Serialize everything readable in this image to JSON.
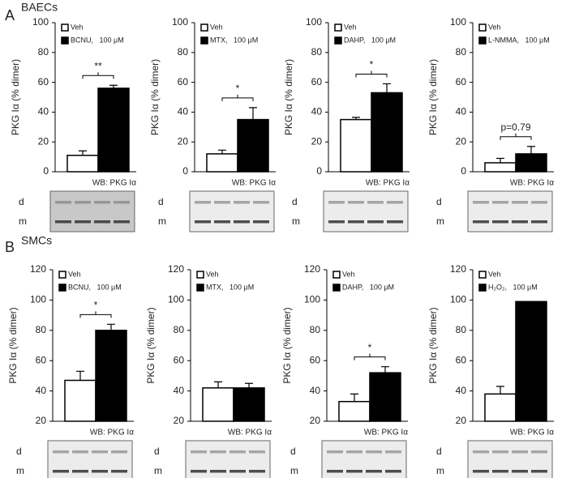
{
  "panels": [
    {
      "letter": "A",
      "label": "BAECs"
    },
    {
      "letter": "B",
      "label": "SMCs"
    }
  ],
  "chart_data": [
    {
      "type": "bar",
      "ylabel": "PKG Iα (% dimer)",
      "ylim": [
        0,
        100
      ],
      "yticks": [
        0,
        20,
        40,
        60,
        80,
        100
      ],
      "annotation": "**",
      "blot_label": "WB: PKG Iα",
      "blot_bands": [
        "d",
        "m"
      ],
      "series": [
        {
          "name": "Veh",
          "color": "#ffffff",
          "values": [
            11
          ],
          "errors": [
            3
          ]
        },
        {
          "name": "BCNU,   100 μM",
          "color": "#000000",
          "values": [
            56
          ],
          "errors": [
            2
          ]
        }
      ]
    },
    {
      "type": "bar",
      "ylabel": "PKG Iα (% dimer)",
      "ylim": [
        0,
        100
      ],
      "yticks": [
        0,
        20,
        40,
        60,
        80,
        100
      ],
      "annotation": "*",
      "blot_label": "WB: PKG Iα",
      "blot_bands": [
        "d",
        "m"
      ],
      "series": [
        {
          "name": "Veh",
          "color": "#ffffff",
          "values": [
            12
          ],
          "errors": [
            2.5
          ]
        },
        {
          "name": "MTX,   100 μM",
          "color": "#000000",
          "values": [
            35
          ],
          "errors": [
            8
          ]
        }
      ]
    },
    {
      "type": "bar",
      "ylabel": "PKG Iα (% dimer)",
      "ylim": [
        0,
        100
      ],
      "yticks": [
        0,
        20,
        40,
        60,
        80,
        100
      ],
      "annotation": "*",
      "blot_label": "WB: PKG Iα",
      "blot_bands": [
        "d",
        "m"
      ],
      "series": [
        {
          "name": "Veh",
          "color": "#ffffff",
          "values": [
            35
          ],
          "errors": [
            1.5
          ]
        },
        {
          "name": "DAHP,   100 μM",
          "color": "#000000",
          "values": [
            53
          ],
          "errors": [
            6
          ]
        }
      ]
    },
    {
      "type": "bar",
      "ylabel": "PKG Iα (% dimer)",
      "ylim": [
        0,
        100
      ],
      "yticks": [
        0,
        20,
        40,
        60,
        80,
        100
      ],
      "annotation": "p=0.79",
      "blot_label": "WB: PKG Iα",
      "blot_bands": [
        "d",
        "m"
      ],
      "series": [
        {
          "name": "Veh",
          "color": "#ffffff",
          "values": [
            6
          ],
          "errors": [
            3
          ]
        },
        {
          "name": "L-NMMA,   100 μM",
          "color": "#000000",
          "values": [
            12
          ],
          "errors": [
            5
          ]
        }
      ]
    },
    {
      "type": "bar",
      "ylabel": "PKG Iα (% dimer)",
      "ylim": [
        20,
        120
      ],
      "yticks": [
        20,
        40,
        60,
        80,
        100,
        120
      ],
      "annotation": "*",
      "blot_label": "WB: PKG Iα",
      "blot_bands": [
        "d",
        "m"
      ],
      "series": [
        {
          "name": "Veh",
          "color": "#ffffff",
          "values": [
            47
          ],
          "errors": [
            6
          ]
        },
        {
          "name": "BCNU,   100 μM",
          "color": "#000000",
          "values": [
            80
          ],
          "errors": [
            4
          ]
        }
      ]
    },
    {
      "type": "bar",
      "ylabel": "PKG Iα (% dimer)",
      "ylim": [
        20,
        120
      ],
      "yticks": [
        20,
        40,
        60,
        80,
        100,
        120
      ],
      "blot_label": "WB: PKG Iα",
      "blot_bands": [
        "d",
        "m"
      ],
      "series": [
        {
          "name": "Veh",
          "color": "#ffffff",
          "values": [
            42
          ],
          "errors": [
            4
          ]
        },
        {
          "name": "MTX,   100 μM",
          "color": "#000000",
          "values": [
            42
          ],
          "errors": [
            3
          ]
        }
      ]
    },
    {
      "type": "bar",
      "ylabel": "PKG Iα (% dimer)",
      "ylim": [
        20,
        120
      ],
      "yticks": [
        20,
        40,
        60,
        80,
        100,
        120
      ],
      "annotation": "*",
      "blot_label": "WB: PKG Iα",
      "blot_bands": [
        "d",
        "m"
      ],
      "series": [
        {
          "name": "Veh",
          "color": "#ffffff",
          "values": [
            33
          ],
          "errors": [
            5
          ]
        },
        {
          "name": "DAHP,   100 μM",
          "color": "#000000",
          "values": [
            52
          ],
          "errors": [
            4
          ]
        }
      ]
    },
    {
      "type": "bar",
      "ylabel": "PKG Iα (% dimer)",
      "ylim": [
        20,
        120
      ],
      "yticks": [
        20,
        40,
        60,
        80,
        100,
        120
      ],
      "blot_label": "WB: PKG Iα",
      "blot_bands": [
        "d",
        "m"
      ],
      "series": [
        {
          "name": "Veh",
          "color": "#ffffff",
          "values": [
            38
          ],
          "errors": [
            5
          ]
        },
        {
          "name": "H₂O₂,   100 μM",
          "color": "#000000",
          "values": [
            99
          ],
          "errors": [
            null
          ]
        }
      ]
    }
  ]
}
